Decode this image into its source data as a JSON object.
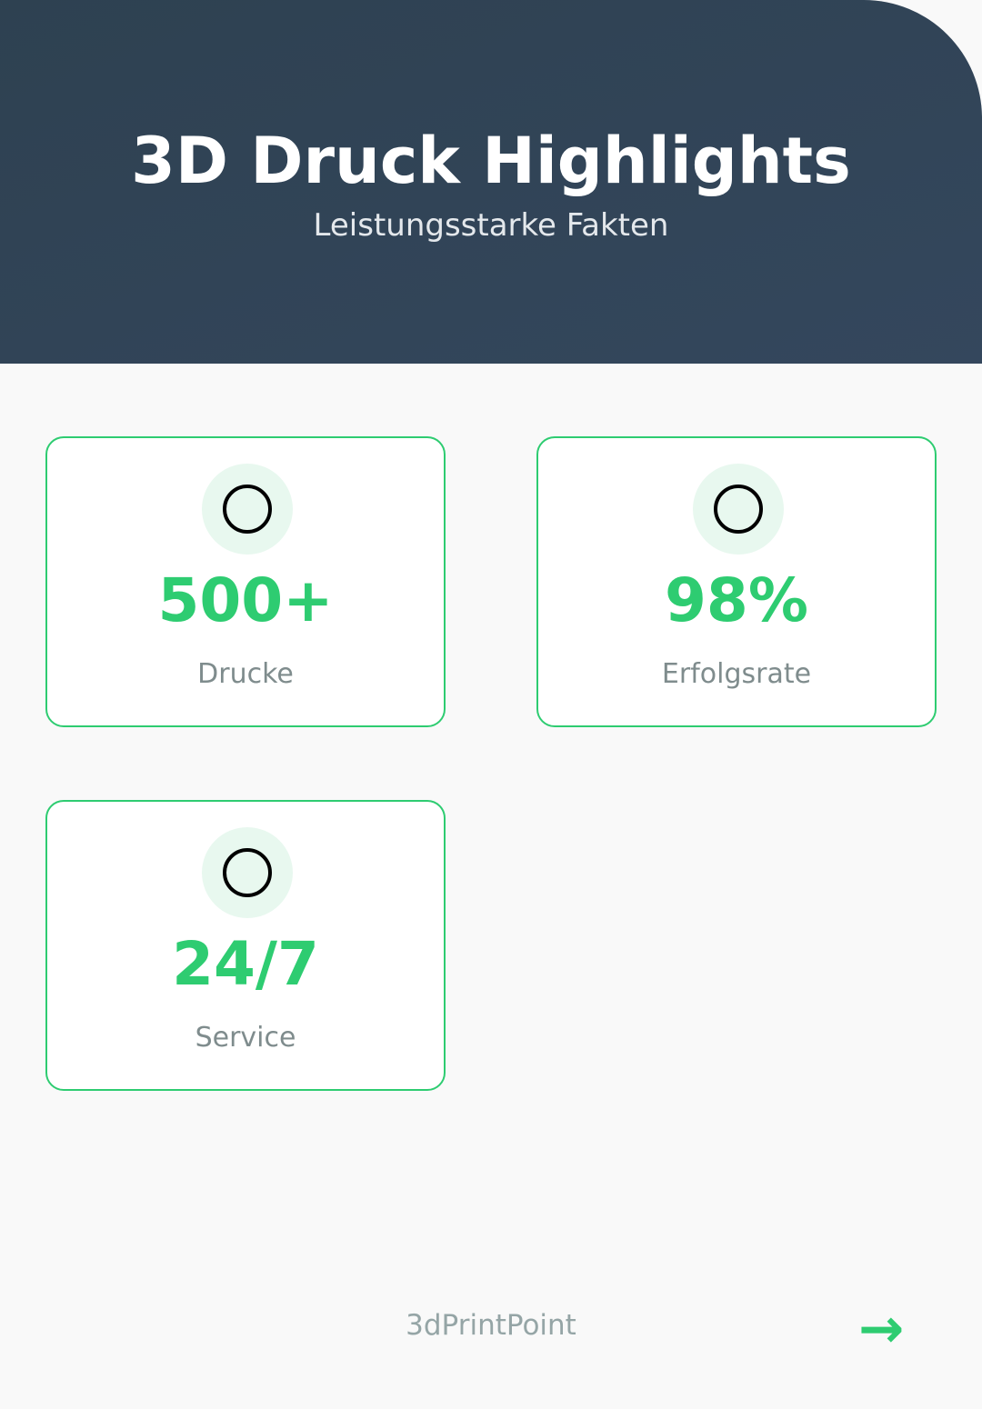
{
  "header": {
    "title": "3D Druck Highlights",
    "subtitle": "Leistungsstarke Fakten"
  },
  "stats": [
    {
      "value": "500+",
      "label": "Drucke",
      "icon": "circle-icon"
    },
    {
      "value": "98%",
      "label": "Erfolgsrate",
      "icon": "circle-icon"
    },
    {
      "value": "24/7",
      "label": "Service",
      "icon": "circle-icon"
    }
  ],
  "footer": {
    "brand": "3dPrintPoint",
    "next_icon": "arrow-right-icon",
    "next_symbol": "→"
  },
  "colors": {
    "accent": "#2ecc71",
    "header_bg": "#2e4151",
    "label": "#7f8c8d"
  }
}
